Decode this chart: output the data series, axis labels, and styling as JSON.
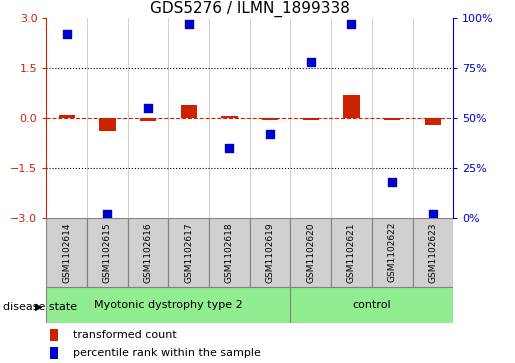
{
  "title": "GDS5276 / ILMN_1899338",
  "samples": [
    "GSM1102614",
    "GSM1102615",
    "GSM1102616",
    "GSM1102617",
    "GSM1102618",
    "GSM1102619",
    "GSM1102620",
    "GSM1102621",
    "GSM1102622",
    "GSM1102623"
  ],
  "red_values": [
    0.1,
    -0.38,
    -0.08,
    0.38,
    0.05,
    -0.05,
    -0.07,
    0.68,
    -0.05,
    -0.22
  ],
  "blue_values": [
    92,
    2,
    55,
    97,
    35,
    42,
    78,
    97,
    18,
    2
  ],
  "groups": [
    {
      "label": "Myotonic dystrophy type 2",
      "start": 0,
      "end": 5
    },
    {
      "label": "control",
      "start": 6,
      "end": 9
    }
  ],
  "disease_state_label": "disease state",
  "left_ylim": [
    -3,
    3
  ],
  "right_ylim": [
    0,
    100
  ],
  "left_yticks": [
    -3,
    -1.5,
    0,
    1.5,
    3
  ],
  "right_yticks": [
    0,
    25,
    50,
    75,
    100
  ],
  "right_yticklabels": [
    "0%",
    "25%",
    "50%",
    "75%",
    "100%"
  ],
  "hline_dotted": [
    -1.5,
    1.5
  ],
  "bar_color": "#cc2200",
  "dot_color": "#0000cc",
  "group_color_1": "#90ee90",
  "group_color_2": "#90ee90",
  "group_box_color": "#d0d0d0",
  "legend_red_label": "transformed count",
  "legend_blue_label": "percentile rank within the sample",
  "bar_width": 0.4,
  "dot_size": 35,
  "title_fontsize": 11,
  "tick_fontsize": 8,
  "label_fontsize": 8
}
